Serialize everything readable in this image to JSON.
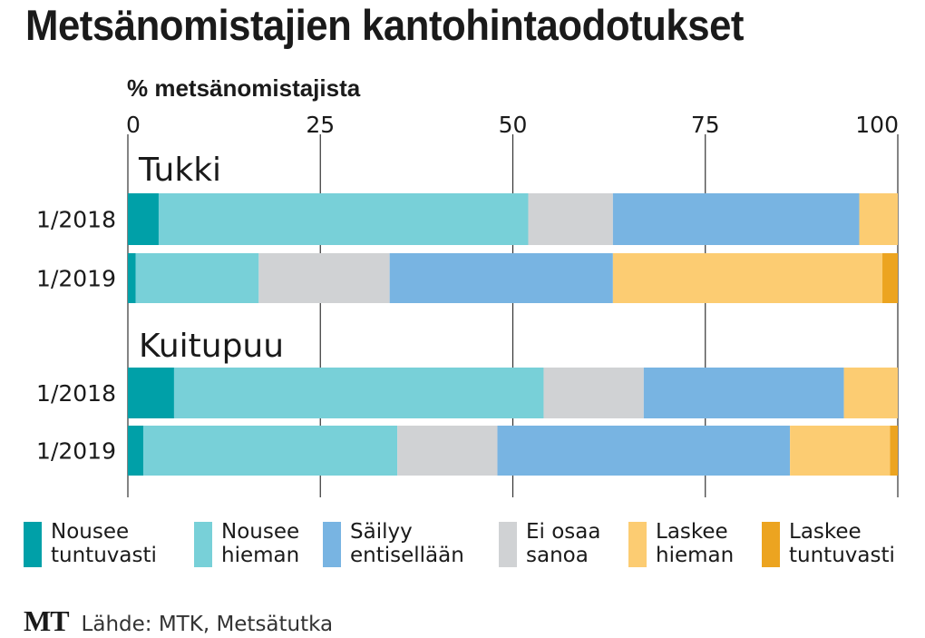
{
  "chart_data": {
    "type": "bar",
    "orientation": "horizontal",
    "stacked": true,
    "title": "Metsänomistajien kantohintaodotukset",
    "xlabel": "% metsänomistajista",
    "ylabel": "",
    "xlim": [
      0,
      100
    ],
    "xticks": [
      0,
      25,
      50,
      75,
      100
    ],
    "grid": true,
    "legend_position": "bottom",
    "groups": [
      {
        "label": "Tukki",
        "rows": [
          {
            "label": "1/2018",
            "values": [
              4,
              48,
              11,
              32,
              5,
              0
            ]
          },
          {
            "label": "1/2019",
            "values": [
              1,
              16,
              17,
              29,
              35,
              2
            ]
          }
        ]
      },
      {
        "label": "Kuitupuu",
        "rows": [
          {
            "label": "1/2018",
            "values": [
              6,
              48,
              13,
              26,
              7,
              0
            ]
          },
          {
            "label": "1/2019",
            "values": [
              2,
              33,
              13,
              38,
              13,
              1
            ]
          }
        ]
      }
    ],
    "series": [
      {
        "key": "nousee_tuntuvasti",
        "name": "Nousee\ntuntuvasti",
        "color": "#00a0a8"
      },
      {
        "key": "nousee_hieman",
        "name": "Nousee\nhieman",
        "color": "#78d0d8"
      },
      {
        "key": "ei_osaa",
        "name": "Ei osaa\nsanoa",
        "color": "#d0d2d4"
      },
      {
        "key": "sailyy",
        "name": "Säilyy\nentisellään",
        "color": "#78b4e2"
      },
      {
        "key": "laskee_hieman",
        "name": "Laskee\nhieman",
        "color": "#fccc72"
      },
      {
        "key": "laskee_tuntuvasti",
        "name": "Laskee\ntuntuvasti",
        "color": "#eca420"
      }
    ],
    "legend_order": [
      "nousee_tuntuvasti",
      "nousee_hieman",
      "sailyy",
      "ei_osaa",
      "laskee_hieman",
      "laskee_tuntuvasti"
    ]
  },
  "footer": {
    "logo": "MT",
    "source": "Lähde: MTK, Metsätutka"
  }
}
